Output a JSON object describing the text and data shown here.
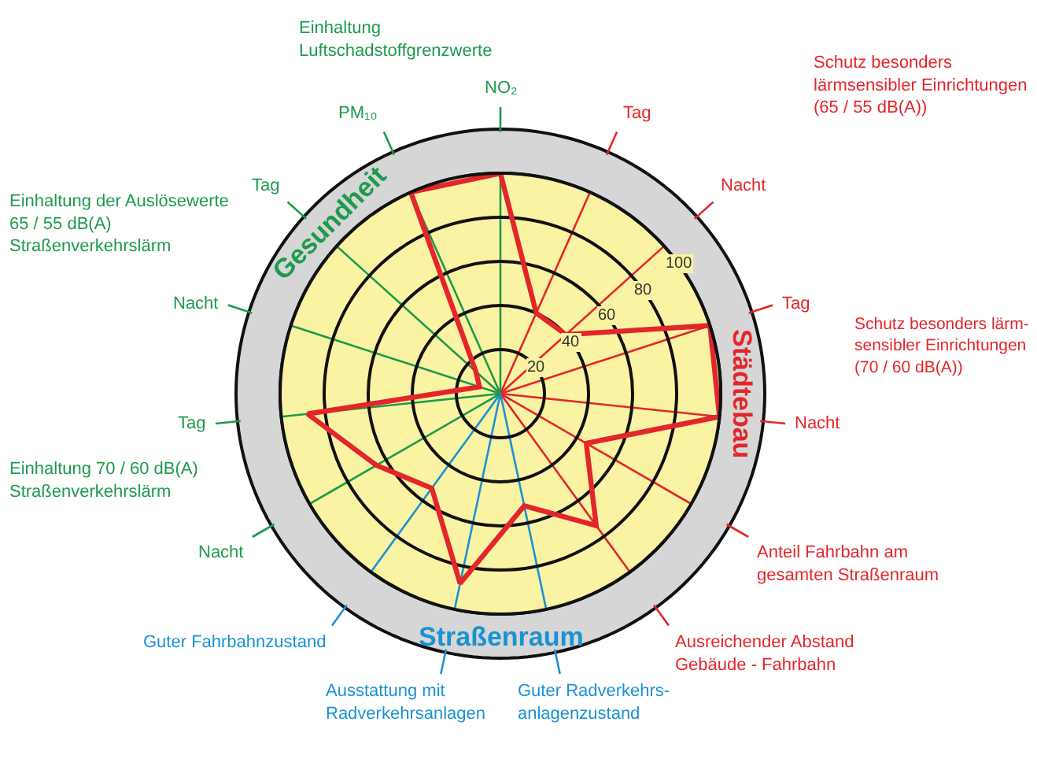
{
  "chart_data": {
    "type": "radar",
    "categories": [
      "NO₂",
      "Tag",
      "Nacht",
      "Tag",
      "Nacht",
      "Anteil Fahrbahn am gesamten Straßenraum",
      "Ausreichender Abstand Gebäude - Fahrbahn",
      "Guter Radverkehrs-anlagenzustand",
      "Ausstattung mit Radverkehrsanlagen",
      "Guter Fahrbahnzustand",
      "Nacht",
      "Tag",
      "Nacht",
      "Tag",
      "PM₁₀"
    ],
    "series": [
      {
        "color": "#e3262b",
        "values": [
          100,
          40,
          40,
          100,
          100,
          45,
          74,
          52,
          88,
          53,
          65,
          88,
          10,
          15,
          100
        ]
      }
    ],
    "ylim": [
      0,
      100
    ],
    "yticks": [
      20,
      40,
      60,
      80,
      100
    ],
    "grid": true,
    "marker": "none",
    "line_style": "solid",
    "annotations": [
      "Einhaltung Luftschadstoffgrenzwerte",
      "Schutz besonders lärmsensibler Einrichtungen (65 / 55 dB(A))",
      "Schutz besonders lärm-sensibler Einrichtungen (70 / 60 dB(A))",
      "Einhaltung der Auslösewerte 65 / 55 dB(A) Straßenverkehrslärm",
      "Einhaltung 70 / 60 dB(A) Straßenverkehrslärm",
      "Gesundheit",
      "Städtebau",
      "Straßenraum"
    ]
  }
}
